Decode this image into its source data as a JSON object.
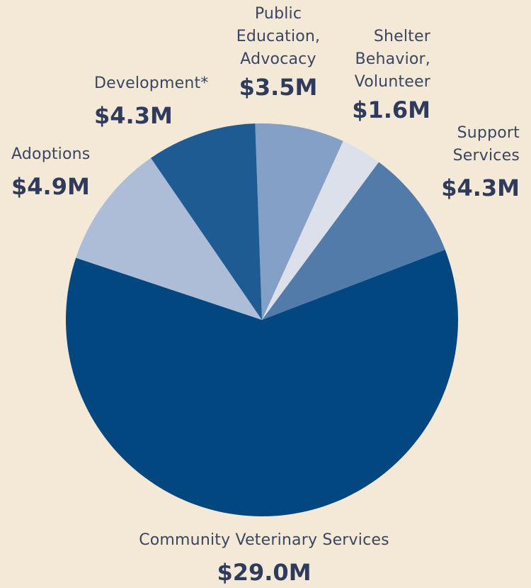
{
  "chart_data": {
    "type": "pie",
    "unit": "$M",
    "start_angle_deg": 358,
    "direction": "clockwise",
    "slices": [
      {
        "label": "Public Education, Advocacy",
        "label_lines": [
          "Public",
          "Education,",
          "Advocacy"
        ],
        "value": 3.5,
        "value_label": "$3.5M",
        "color": "#85a0c6"
      },
      {
        "label": "Shelter Behavior, Volunteer",
        "label_lines": [
          "Shelter",
          "Behavior,",
          "Volunteer"
        ],
        "value": 1.6,
        "value_label": "$1.6M",
        "color": "#dce0ea"
      },
      {
        "label": "Support Services",
        "label_lines": [
          "Support",
          "Services"
        ],
        "value": 4.3,
        "value_label": "$4.3M",
        "color": "#527ba9"
      },
      {
        "label": "Community Veterinary Services",
        "label_lines": [
          "Community Veterinary Services"
        ],
        "value": 29.0,
        "value_label": "$29.0M",
        "color": "#034781"
      },
      {
        "label": "Adoptions",
        "label_lines": [
          "Adoptions"
        ],
        "value": 4.9,
        "value_label": "$4.9M",
        "color": "#adbcd7"
      },
      {
        "label": "Development*",
        "label_lines": [
          "Development*"
        ],
        "value": 4.3,
        "value_label": "$4.3M",
        "color": "#1f5b93"
      }
    ]
  }
}
